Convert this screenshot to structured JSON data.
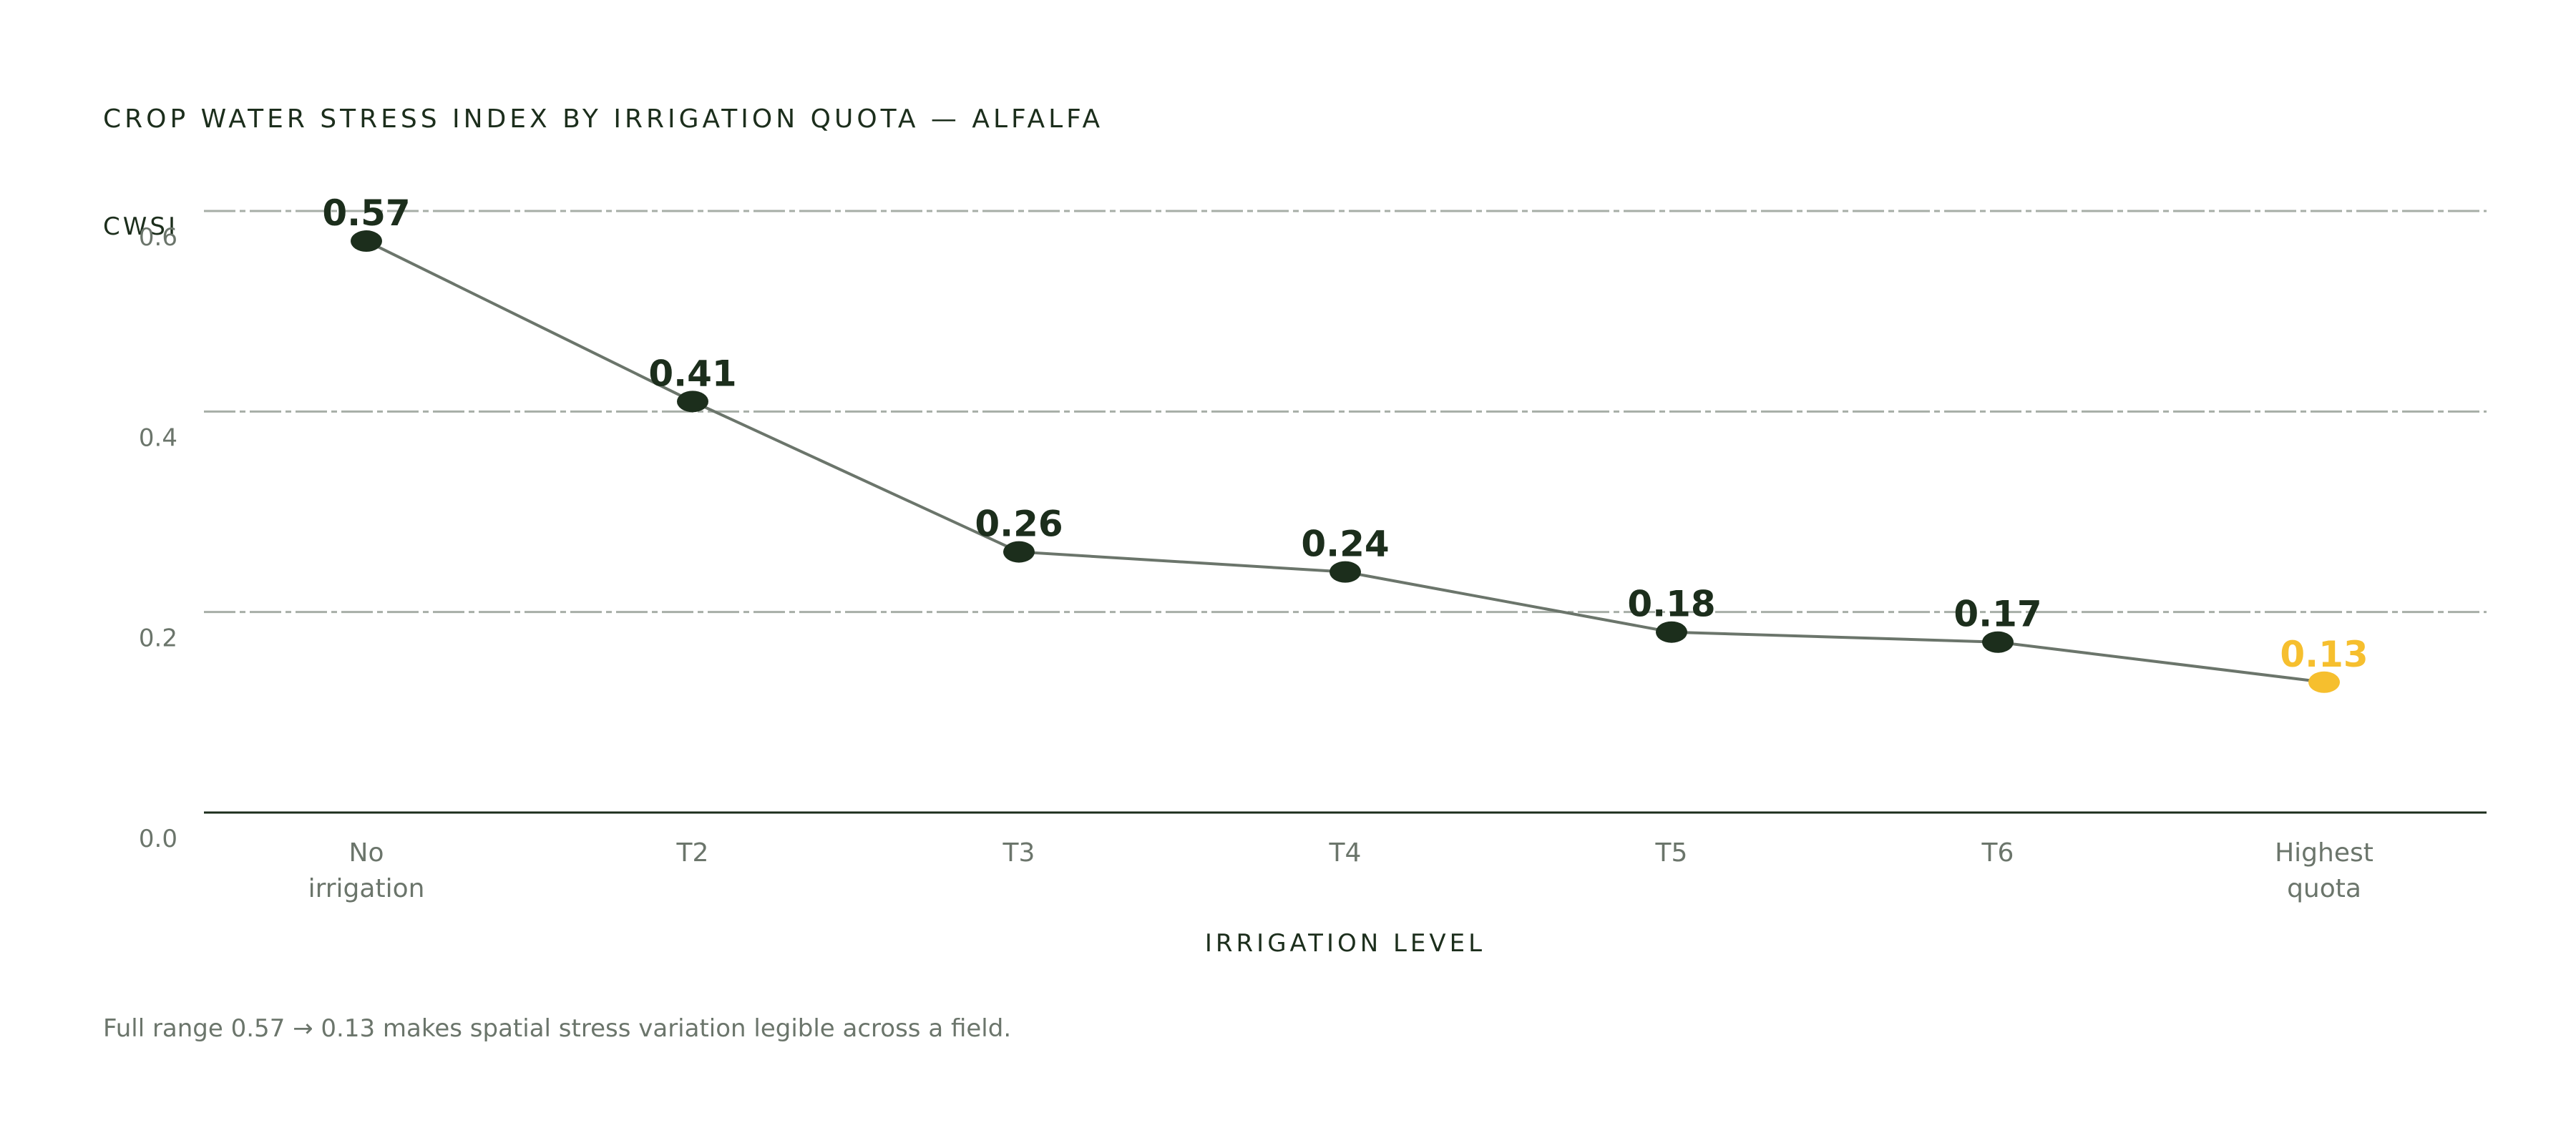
{
  "title": "CROP WATER STRESS INDEX BY IRRIGATION QUOTA — ALFALFA",
  "footnote": "Full range 0.57 → 0.13 makes spatial stress variation legible across a field.",
  "colors": {
    "line": "#6b756b",
    "point": "#1c2e1c",
    "highlight": "#f6bf2e",
    "grid": "#a7aea7",
    "axis": "#1c2e1c",
    "tick_label": "#6b756b"
  },
  "chart_data": {
    "type": "line",
    "title": "CROP WATER STRESS INDEX BY IRRIGATION QUOTA — ALFALFA",
    "ylabel": "CWSI",
    "xlabel": "IRRIGATION LEVEL",
    "categories": [
      [
        "No",
        "irrigation"
      ],
      [
        "T2"
      ],
      [
        "T3"
      ],
      [
        "T4"
      ],
      [
        "T5"
      ],
      [
        "T6"
      ],
      [
        "Highest",
        "quota"
      ]
    ],
    "values": [
      0.57,
      0.41,
      0.26,
      0.24,
      0.18,
      0.17,
      0.13
    ],
    "data_labels": [
      "0.57",
      "0.41",
      "0.26",
      "0.24",
      "0.18",
      "0.17",
      "0.13"
    ],
    "highlight_index": 6,
    "ylim": [
      0.0,
      0.6
    ],
    "yticks": [
      0.0,
      0.2,
      0.4,
      0.6
    ],
    "ytick_labels": [
      "0.0",
      "0.2",
      "0.4",
      "0.6"
    ],
    "grid": true,
    "grid_style": "dash-dot horizontal"
  }
}
